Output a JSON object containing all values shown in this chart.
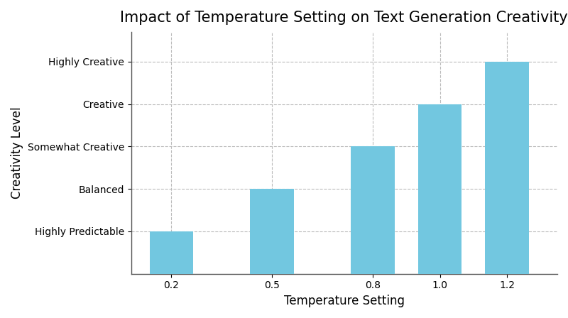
{
  "title": "Impact of Temperature Setting on Text Generation Creativity",
  "xlabel": "Temperature Setting",
  "ylabel": "Creativity Level",
  "categories": [
    0.2,
    0.5,
    0.8,
    1.0,
    1.2
  ],
  "values": [
    1,
    2,
    3,
    4,
    5
  ],
  "ytick_labels": [
    "Highly Predictable",
    "Balanced",
    "Somewhat Creative",
    "Creative",
    "Highly Creative"
  ],
  "ytick_positions": [
    1,
    2,
    3,
    4,
    5
  ],
  "bar_color": "#72c7e0",
  "bar_width": 0.13,
  "xlim": [
    0.08,
    1.35
  ],
  "ylim": [
    0,
    5.7
  ],
  "grid_color": "#bbbbbb",
  "title_fontsize": 15,
  "label_fontsize": 12,
  "tick_fontsize": 10,
  "background_color": "#ffffff"
}
